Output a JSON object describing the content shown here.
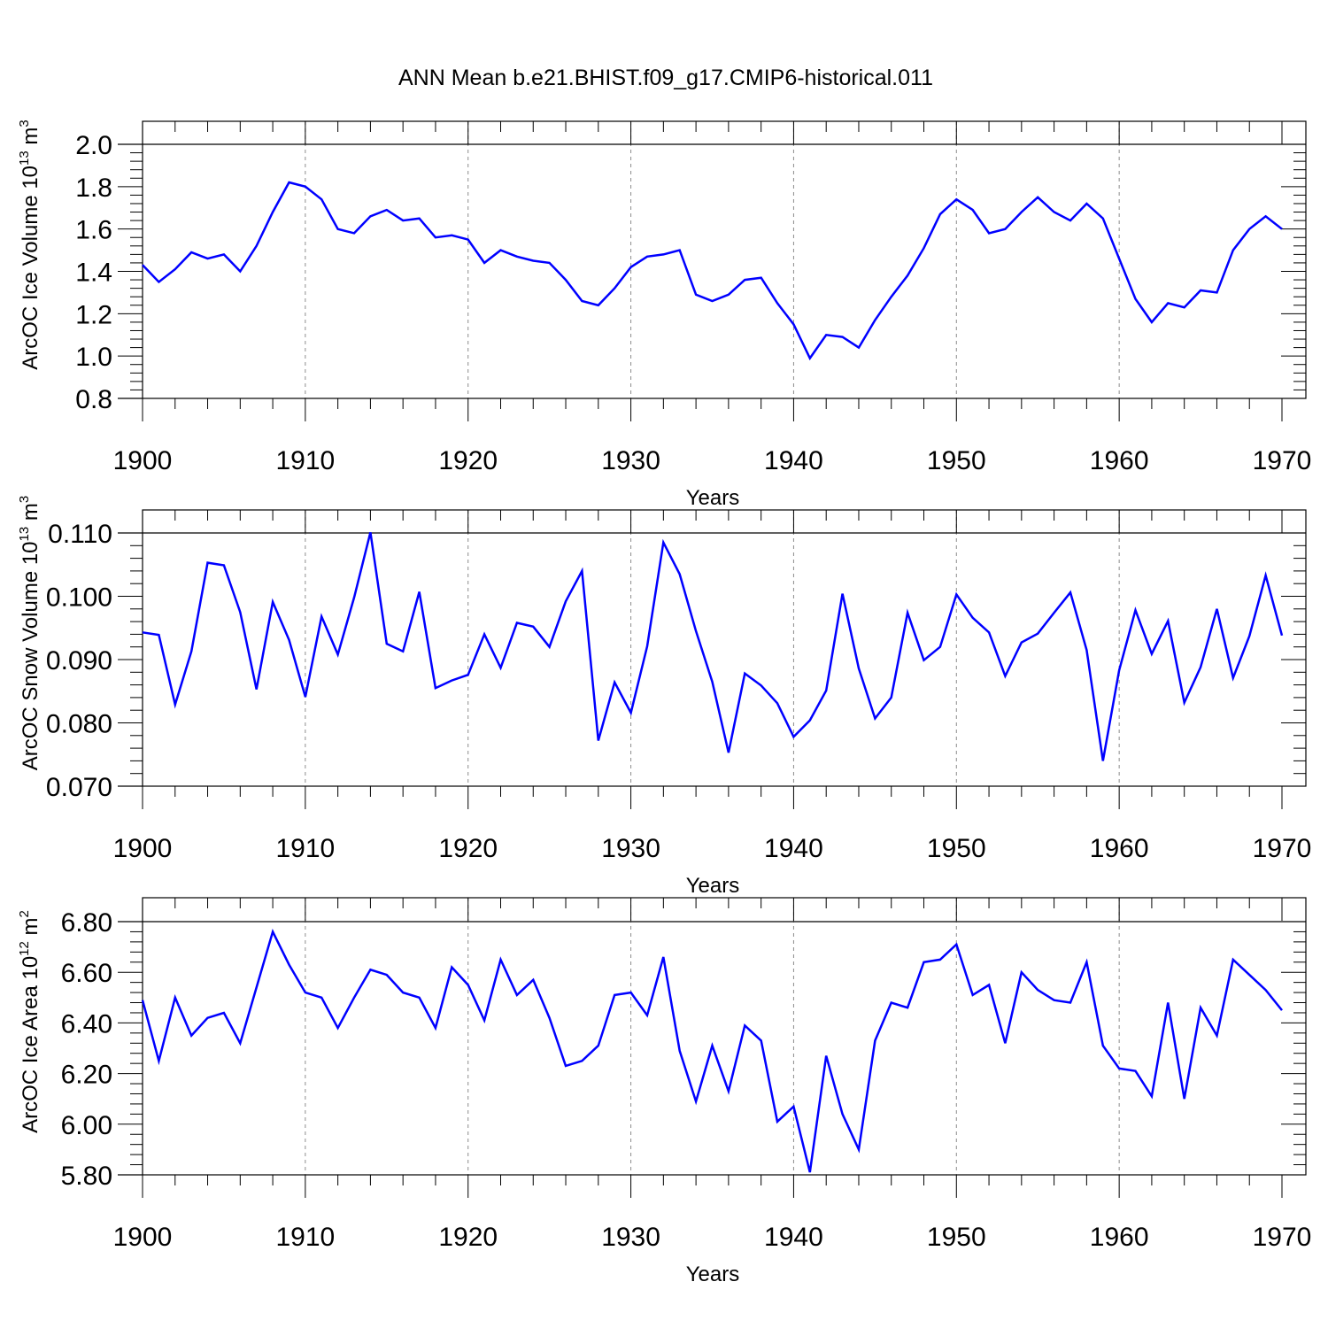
{
  "title": "ANN Mean b.e21.BHIST.f09_g17.CMIP6-historical.011",
  "colors": {
    "line": "#0000ff",
    "axis": "#000000",
    "grid": "#8c8c8c"
  },
  "chart_data": [
    {
      "type": "line",
      "ylabel_main": "ArcOC Ice Volume 10",
      "ylabel_exp": "13",
      "ylabel_unit": " m",
      "ylabel_unit_exp": "3",
      "xlabel": "Years",
      "xlim": [
        1900,
        1970
      ],
      "ylim": [
        0.8,
        2.0
      ],
      "ytick_values": [
        0.8,
        1.0,
        1.2,
        1.4,
        1.6,
        1.8,
        2.0
      ],
      "ytick_labels": [
        "0.8",
        "1.0",
        "1.2",
        "1.4",
        "1.6",
        "1.8",
        "2.0"
      ],
      "xtick_values": [
        1900,
        1910,
        1920,
        1930,
        1940,
        1950,
        1960,
        1970
      ],
      "xtick_labels": [
        "1900",
        "1910",
        "1920",
        "1930",
        "1940",
        "1950",
        "1960",
        "1970"
      ],
      "x_start": 1900,
      "values": [
        1.43,
        1.35,
        1.41,
        1.49,
        1.46,
        1.48,
        1.4,
        1.52,
        1.68,
        1.82,
        1.8,
        1.74,
        1.6,
        1.58,
        1.66,
        1.69,
        1.64,
        1.65,
        1.56,
        1.57,
        1.55,
        1.44,
        1.5,
        1.47,
        1.45,
        1.44,
        1.36,
        1.26,
        1.24,
        1.32,
        1.42,
        1.47,
        1.48,
        1.5,
        1.29,
        1.26,
        1.29,
        1.36,
        1.37,
        1.25,
        1.15,
        0.99,
        1.1,
        1.09,
        1.04,
        1.17,
        1.28,
        1.38,
        1.51,
        1.67,
        1.74,
        1.69,
        1.58,
        1.6,
        1.68,
        1.75,
        1.68,
        1.64,
        1.72,
        1.65,
        1.46,
        1.27,
        1.16,
        1.25,
        1.23,
        1.31,
        1.3,
        1.5,
        1.6,
        1.66,
        1.6
      ]
    },
    {
      "type": "line",
      "ylabel_main": "ArcOC Snow Volume 10",
      "ylabel_exp": "13",
      "ylabel_unit": " m",
      "ylabel_unit_exp": "3",
      "xlabel": "Years",
      "xlim": [
        1900,
        1970
      ],
      "ylim": [
        0.07,
        0.11
      ],
      "ytick_values": [
        0.07,
        0.08,
        0.09,
        0.1,
        0.11
      ],
      "ytick_labels": [
        "0.070",
        "0.080",
        "0.090",
        "0.100",
        "0.110"
      ],
      "xtick_values": [
        1900,
        1910,
        1920,
        1930,
        1940,
        1950,
        1960,
        1970
      ],
      "xtick_labels": [
        "1900",
        "1910",
        "1920",
        "1930",
        "1940",
        "1950",
        "1960",
        "1970"
      ],
      "x_start": 1900,
      "values": [
        0.0943,
        0.0939,
        0.0829,
        0.0913,
        0.1053,
        0.1049,
        0.0975,
        0.0853,
        0.0991,
        0.0931,
        0.0841,
        0.0968,
        0.0908,
        0.0998,
        0.1101,
        0.0925,
        0.0913,
        0.1007,
        0.0855,
        0.0867,
        0.0876,
        0.094,
        0.0887,
        0.0958,
        0.0952,
        0.092,
        0.0992,
        0.104,
        0.0772,
        0.0864,
        0.0816,
        0.0921,
        0.1085,
        0.1035,
        0.0945,
        0.0865,
        0.0753,
        0.0878,
        0.0859,
        0.0831,
        0.0778,
        0.0804,
        0.0851,
        0.1004,
        0.0886,
        0.0807,
        0.084,
        0.0974,
        0.0899,
        0.092,
        0.1003,
        0.0966,
        0.0943,
        0.0874,
        0.0927,
        0.0941,
        0.0974,
        0.1006,
        0.0915,
        0.074,
        0.0883,
        0.0978,
        0.0909,
        0.0961,
        0.0832,
        0.0888,
        0.098,
        0.0871,
        0.0937,
        0.1033,
        0.0938
      ]
    },
    {
      "type": "line",
      "ylabel_main": "ArcOC Ice Area 10",
      "ylabel_exp": "12",
      "ylabel_unit": " m",
      "ylabel_unit_exp": "2",
      "xlabel": "Years",
      "xlim": [
        1900,
        1970
      ],
      "ylim": [
        5.8,
        6.8
      ],
      "ytick_values": [
        5.8,
        6.0,
        6.2,
        6.4,
        6.6,
        6.8
      ],
      "ytick_labels": [
        "5.80",
        "6.00",
        "6.20",
        "6.40",
        "6.60",
        "6.80"
      ],
      "xtick_values": [
        1900,
        1910,
        1920,
        1930,
        1940,
        1950,
        1960,
        1970
      ],
      "xtick_labels": [
        "1900",
        "1910",
        "1920",
        "1930",
        "1940",
        "1950",
        "1960",
        "1970"
      ],
      "x_start": 1900,
      "values": [
        6.49,
        6.25,
        6.5,
        6.35,
        6.42,
        6.44,
        6.32,
        6.54,
        6.76,
        6.63,
        6.52,
        6.5,
        6.38,
        6.5,
        6.61,
        6.59,
        6.52,
        6.5,
        6.38,
        6.62,
        6.55,
        6.41,
        6.65,
        6.51,
        6.57,
        6.42,
        6.23,
        6.25,
        6.31,
        6.51,
        6.52,
        6.43,
        6.66,
        6.29,
        6.09,
        6.31,
        6.13,
        6.39,
        6.33,
        6.01,
        6.07,
        5.81,
        6.27,
        6.04,
        5.9,
        6.33,
        6.48,
        6.46,
        6.64,
        6.65,
        6.71,
        6.51,
        6.55,
        6.32,
        6.6,
        6.53,
        6.49,
        6.48,
        6.64,
        6.31,
        6.22,
        6.21,
        6.11,
        6.48,
        6.1,
        6.46,
        6.35,
        6.65,
        6.59,
        6.53,
        6.45
      ]
    }
  ]
}
